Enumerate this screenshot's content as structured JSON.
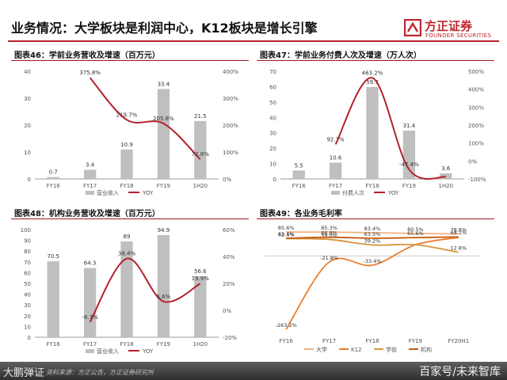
{
  "page": {
    "title": "业务情况：大学板块是利润中心，K12板块是增长引擎",
    "brand_cn": "方正证券",
    "brand_en": "FOUNDER SECURITIES",
    "brand_color": "#c0262d",
    "footer_left": "大鹏弹证",
    "footer_source": "资料来源：方正公告，方正证券研究所",
    "footer_right": "百家号/未来智库"
  },
  "chart_data": [
    {
      "type": "bar+line",
      "title": "图表46：学前业务营收及增速（百万元）",
      "categories": [
        "FY16",
        "FY17",
        "FY18",
        "FY19",
        "1H20"
      ],
      "bar_series": {
        "name": "营业收入",
        "values": [
          0.7,
          3.4,
          10.9,
          33.4,
          21.5
        ],
        "color": "#bfbfbf"
      },
      "line_series": {
        "name": "YOY",
        "values": [
          null,
          375.8,
          219.7,
          205.8,
          72.8
        ],
        "labels": [
          "",
          "375.8%",
          "219.7%",
          "205.8%",
          "72.8%"
        ],
        "color": "#b3202a"
      },
      "left_ticks": [
        "0",
        "10",
        "20",
        "30",
        "40"
      ],
      "ylim_left": [
        0,
        40
      ],
      "right_ticks": [
        "0%",
        "100%",
        "200%",
        "300%",
        "400%"
      ],
      "ylim_right": [
        0,
        400
      ],
      "legend": "bottom"
    },
    {
      "type": "bar+line",
      "title": "图表47：学前业务付费人次及增速（万人次）",
      "categories": [
        "FY16",
        "FY17",
        "FY18",
        "FY19",
        "1H20"
      ],
      "bar_series": {
        "name": "付费人次",
        "values": [
          5.5,
          10.6,
          59.7,
          31.4,
          3.6
        ],
        "color": "#bfbfbf"
      },
      "line_series": {
        "name": "YOY",
        "values": [
          null,
          92.7,
          463.2,
          -47.4,
          -88.5
        ],
        "labels": [
          "",
          "92.7%",
          "463.2%",
          "-47.4%",
          ""
        ],
        "color": "#b3202a"
      },
      "left_ticks": [
        "0",
        "10",
        "20",
        "30",
        "40",
        "50",
        "60",
        "70"
      ],
      "ylim_left": [
        0,
        70
      ],
      "right_ticks": [
        "-100%",
        "0%",
        "100%",
        "200%",
        "300%",
        "400%",
        "500%"
      ],
      "ylim_right": [
        -100,
        500
      ],
      "legend": "bottom"
    },
    {
      "type": "bar+line",
      "title": "图表48：机构业务营收及增速（百万元）",
      "categories": [
        "FY16",
        "FY17",
        "FY18",
        "FY19",
        "1H20"
      ],
      "bar_series": {
        "name": "营业收入",
        "values": [
          70.5,
          64.3,
          89.0,
          94.9,
          56.6
        ],
        "color": "#bfbfbf"
      },
      "line_series": {
        "name": "YOY",
        "values": [
          null,
          -8.7,
          38.4,
          6.6,
          19.9
        ],
        "labels": [
          "",
          "-8.7%",
          "38.4%",
          "6.6%",
          "19.9%"
        ],
        "color": "#b3202a"
      },
      "left_ticks": [
        "0",
        "10",
        "20",
        "30",
        "40",
        "50",
        "60",
        "70",
        "80",
        "90",
        "100"
      ],
      "ylim_left": [
        0,
        100
      ],
      "right_ticks": [
        "-20%",
        "0%",
        "20%",
        "40%",
        "60%"
      ],
      "ylim_right": [
        -20,
        60
      ],
      "legend": "bottom"
    },
    {
      "type": "line",
      "title": "图表49：各业务毛利率",
      "categories": [
        "FY16",
        "FY17",
        "FY18",
        "FY19",
        "FY20H1"
      ],
      "series": [
        {
          "name": "大学",
          "values": [
            85.6,
            85.3,
            83.4,
            80.5,
            78.8
          ],
          "labels": [
            "85.6%",
            "85.3%",
            "83.4%",
            "80.5%",
            "78.8%"
          ],
          "color": "#f4b183"
        },
        {
          "name": "K12",
          "values": [
            -263.2,
            -21.8,
            -33.4,
            40.0,
            66.0
          ],
          "labels": [
            "-263.2%",
            "-21.8%",
            "-33.4%",
            "",
            ""
          ],
          "color": "#ed7d31"
        },
        {
          "name": "学前",
          "values": [
            62.1,
            59.0,
            39.2,
            40.0,
            12.8
          ],
          "labels": [
            "62.1%",
            "59.0%",
            "39.2%",
            "",
            "12.8%"
          ],
          "color": "#d9953c"
        },
        {
          "name": "机构",
          "values": [
            63.4,
            66.8,
            63.5,
            65.6,
            68.1
          ],
          "labels": [
            "63.4%",
            "66.8%",
            "63.5%",
            "65.6%",
            "68.1%"
          ],
          "color": "#c55a11"
        }
      ],
      "ylim": [
        -280,
        100
      ],
      "legend": "bottom"
    }
  ]
}
